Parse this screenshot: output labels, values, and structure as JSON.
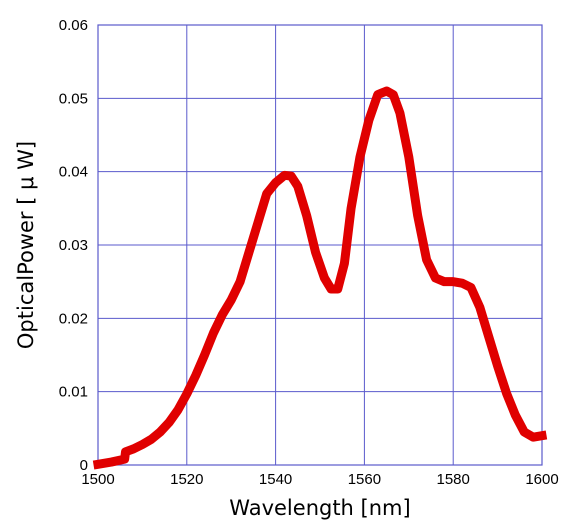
{
  "chart_data": {
    "type": "line",
    "xlabel": "Wavelength [nm]",
    "ylabel": "OpticalPower [ μ W]",
    "xlim": [
      1500,
      1600
    ],
    "ylim": [
      0,
      0.06
    ],
    "x_ticks": [
      "1500",
      "1520",
      "1540",
      "1560",
      "1580",
      "1600"
    ],
    "y_ticks": [
      "0",
      "0.01",
      "0.02",
      "0.03",
      "0.04",
      "0.05",
      "0.06"
    ],
    "grid": true,
    "line_color": "#e00000",
    "grid_color": "#5a5acc",
    "series": [
      {
        "x": [
          1500,
          1503,
          1506,
          1506.2,
          1508,
          1510,
          1512,
          1514,
          1516,
          1518,
          1520,
          1522,
          1524,
          1526,
          1528,
          1530,
          1532,
          1534,
          1536,
          1538,
          1540,
          1542,
          1543.5,
          1545,
          1547,
          1549,
          1551,
          1552.5,
          1554,
          1555.5,
          1557,
          1559,
          1561,
          1563,
          1565,
          1566.5,
          1568,
          1570,
          1572,
          1574,
          1576,
          1578,
          1580,
          1582,
          1584,
          1586,
          1588,
          1590,
          1592,
          1594,
          1596,
          1598,
          1600
        ],
        "y": [
          0.0001,
          0.0004,
          0.0008,
          0.0018,
          0.0022,
          0.0028,
          0.0035,
          0.0045,
          0.0058,
          0.0075,
          0.0097,
          0.0122,
          0.015,
          0.018,
          0.0205,
          0.0225,
          0.025,
          0.029,
          0.033,
          0.037,
          0.0385,
          0.0395,
          0.0394,
          0.038,
          0.034,
          0.029,
          0.0255,
          0.024,
          0.024,
          0.0275,
          0.035,
          0.042,
          0.047,
          0.0505,
          0.051,
          0.0505,
          0.048,
          0.042,
          0.034,
          0.028,
          0.0255,
          0.025,
          0.025,
          0.0248,
          0.0242,
          0.0215,
          0.0175,
          0.0135,
          0.0098,
          0.0068,
          0.0045,
          0.0038,
          0.004
        ]
      }
    ]
  }
}
